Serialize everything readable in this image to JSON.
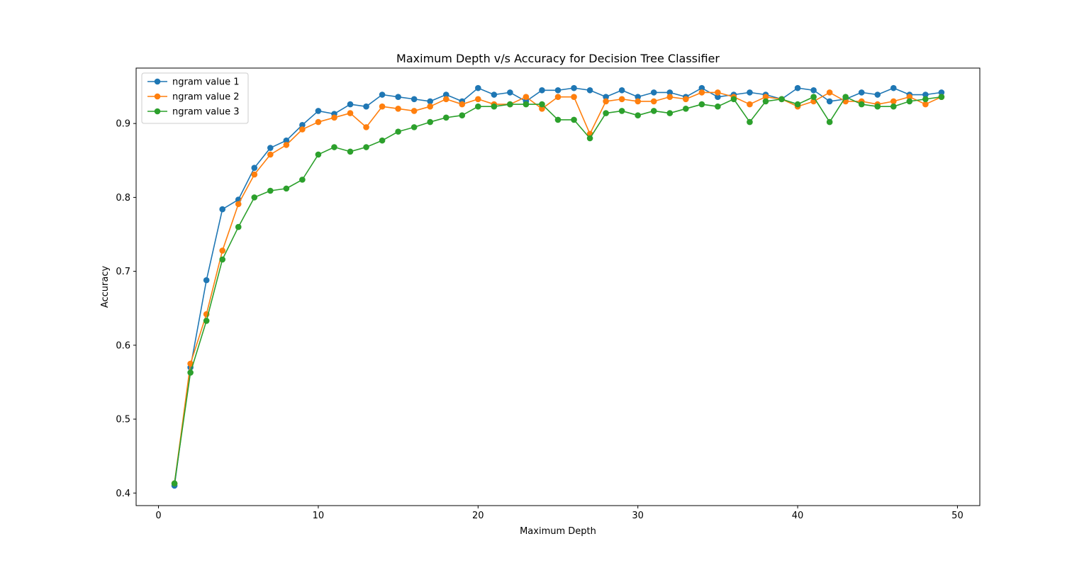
{
  "chart_data": {
    "type": "line",
    "title": "Maximum Depth v/s Accuracy for Decision Tree Classifier",
    "xlabel": "Maximum Depth",
    "ylabel": "Accuracy",
    "xlim": [
      -1.4,
      51.4
    ],
    "ylim": [
      0.383,
      0.975
    ],
    "xticks": [
      0,
      10,
      20,
      30,
      40,
      50
    ],
    "xtick_labels": [
      "0",
      "10",
      "20",
      "30",
      "40",
      "50"
    ],
    "yticks": [
      0.4,
      0.5,
      0.6,
      0.7,
      0.8,
      0.9
    ],
    "ytick_labels": [
      "0.4",
      "0.5",
      "0.6",
      "0.7",
      "0.8",
      "0.9"
    ],
    "grid": false,
    "legend_position": "top-left",
    "marker": "circle",
    "x": [
      1,
      2,
      3,
      4,
      5,
      6,
      7,
      8,
      9,
      10,
      11,
      12,
      13,
      14,
      15,
      16,
      17,
      18,
      19,
      20,
      21,
      22,
      23,
      24,
      25,
      26,
      27,
      28,
      29,
      30,
      31,
      32,
      33,
      34,
      35,
      36,
      37,
      38,
      39,
      40,
      41,
      42,
      43,
      44,
      45,
      46,
      47,
      48,
      49
    ],
    "series": [
      {
        "name": "ngram value 1",
        "color": "#1f77b4",
        "values": [
          0.41,
          0.57,
          0.688,
          0.784,
          0.797,
          0.84,
          0.867,
          0.877,
          0.898,
          0.917,
          0.913,
          0.926,
          0.923,
          0.939,
          0.936,
          0.933,
          0.93,
          0.939,
          0.93,
          0.948,
          0.939,
          0.942,
          0.93,
          0.945,
          0.945,
          0.948,
          0.945,
          0.936,
          0.945,
          0.936,
          0.942,
          0.942,
          0.936,
          0.948,
          0.936,
          0.939,
          0.942,
          0.939,
          0.933,
          0.948,
          0.945,
          0.93,
          0.933,
          0.942,
          0.939,
          0.948,
          0.939,
          0.939,
          0.942
        ]
      },
      {
        "name": "ngram value 2",
        "color": "#ff7f0e",
        "values": [
          0.413,
          0.575,
          0.642,
          0.728,
          0.791,
          0.831,
          0.858,
          0.871,
          0.892,
          0.902,
          0.908,
          0.914,
          0.895,
          0.923,
          0.92,
          0.917,
          0.923,
          0.933,
          0.926,
          0.933,
          0.926,
          0.926,
          0.936,
          0.92,
          0.936,
          0.936,
          0.886,
          0.93,
          0.933,
          0.93,
          0.93,
          0.936,
          0.933,
          0.942,
          0.942,
          0.936,
          0.926,
          0.936,
          0.933,
          0.923,
          0.93,
          0.942,
          0.93,
          0.93,
          0.926,
          0.93,
          0.936,
          0.926,
          0.936
        ]
      },
      {
        "name": "ngram value 3",
        "color": "#2ca02c",
        "values": [
          0.413,
          0.563,
          0.633,
          0.716,
          0.76,
          0.8,
          0.809,
          0.812,
          0.824,
          0.858,
          0.868,
          0.862,
          0.868,
          0.877,
          0.889,
          0.895,
          0.902,
          0.908,
          0.911,
          0.923,
          0.923,
          0.926,
          0.926,
          0.926,
          0.905,
          0.905,
          0.88,
          0.914,
          0.917,
          0.911,
          0.917,
          0.914,
          0.92,
          0.926,
          0.923,
          0.933,
          0.902,
          0.93,
          0.933,
          0.926,
          0.936,
          0.902,
          0.936,
          0.926,
          0.923,
          0.923,
          0.93,
          0.933,
          0.936
        ]
      }
    ]
  }
}
